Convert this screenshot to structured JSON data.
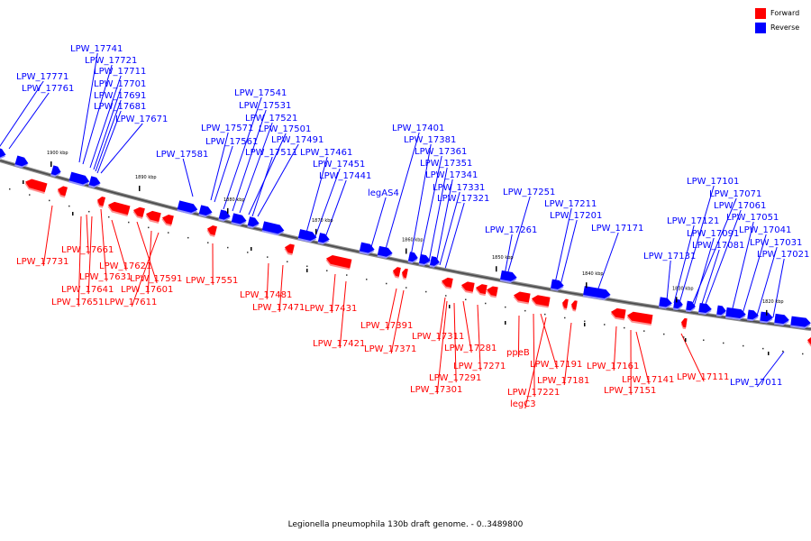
{
  "legend": [
    {
      "label": "Forward",
      "color": "#ff0000"
    },
    {
      "label": "Reverse",
      "color": "#0000ff"
    }
  ],
  "caption": "Legionella pneumophila 130b draft genome. - 0..3489800",
  "ticks": [
    "1900 kbp",
    "1890 kbp",
    "1880 kbp",
    "1870 kbp",
    "1860 kbp",
    "1850 kbp",
    "1840 kbp",
    "1830 kbp",
    "1820 kbp"
  ],
  "reverse_labels": [
    "LPW_17771",
    "LPW_17761",
    "LPW_17741",
    "LPW_17721",
    "LPW_17711",
    "LPW_17701",
    "LPW_17691",
    "LPW_17681",
    "LPW_17671",
    "LPW_17581",
    "LPW_17571",
    "LPW_17561",
    "LPW_17541",
    "LPW_17531",
    "LPW_17521",
    "LPW_17501",
    "LPW_17491",
    "LPW_17511",
    "LPW_17461",
    "LPW_17451",
    "LPW_17441",
    "legAS4",
    "LPW_17401",
    "LPW_17381",
    "LPW_17361",
    "LPW_17351",
    "LPW_17341",
    "LPW_17331",
    "LPW_17321",
    "LPW_17251",
    "LPW_17261",
    "LPW_17211",
    "LPW_17201",
    "LPW_17171",
    "LPW_17101",
    "LPW_17071",
    "LPW_17061",
    "LPW_17121",
    "LPW_17051",
    "LPW_17091",
    "LPW_17041",
    "LPW_17081",
    "LPW_17031",
    "LPW_17131",
    "LPW_17021",
    "LPW_17011"
  ],
  "forward_labels": [
    "LPW_17731",
    "LPW_17661",
    "LPW_17631",
    "LPW_17621",
    "LPW_17591",
    "LPW_17641",
    "LPW_17601",
    "LPW_17651",
    "LPW_17611",
    "LPW_17551",
    "LPW_17481",
    "LPW_17471",
    "LPW_17431",
    "LPW_17421",
    "LPW_17391",
    "LPW_17371",
    "LPW_17311",
    "LPW_17281",
    "LPW_17271",
    "LPW_17291",
    "LPW_17301",
    "ppeB",
    "LPW_17191",
    "LPW_17181",
    "LPW_17221",
    "legC3",
    "LPW_17161",
    "LPW_17141",
    "LPW_17151",
    "LPW_17111"
  ]
}
